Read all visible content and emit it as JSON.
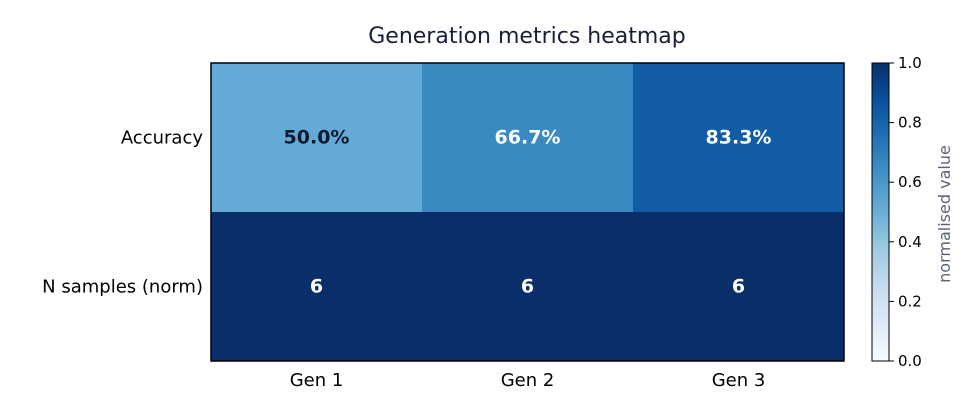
{
  "chart_data": {
    "type": "heatmap",
    "title": "Generation metrics heatmap",
    "x_categories": [
      "Gen 1",
      "Gen 2",
      "Gen 3"
    ],
    "y_categories": [
      "Accuracy",
      "N samples (norm)"
    ],
    "values": [
      [
        0.5,
        0.667,
        0.833
      ],
      [
        1.0,
        1.0,
        1.0
      ]
    ],
    "cell_labels": [
      [
        "50.0%",
        "66.7%",
        "83.3%"
      ],
      [
        "6",
        "6",
        "6"
      ]
    ],
    "colorbar": {
      "label": "normalised value",
      "range": [
        0,
        1
      ],
      "ticks": [
        "0.0",
        "0.2",
        "0.4",
        "0.6",
        "0.8",
        "1.0"
      ],
      "colormap": "Blues"
    },
    "colors": {
      "cell_r0c0": "#63aad6",
      "cell_r0c1": "#3a89c1",
      "cell_r0c2": "#115ca5",
      "cell_r1": "#0a2e69",
      "text_dark": "#0d1a2e",
      "text_light": "#ffffff"
    }
  }
}
